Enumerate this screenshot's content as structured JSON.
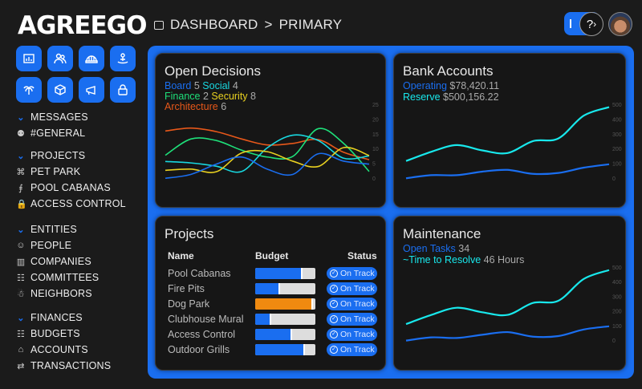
{
  "app": {
    "logo": "AGREEGO"
  },
  "header": {
    "breadcrumb": [
      "DASHBOARD",
      "PRIMARY"
    ],
    "separator": ">",
    "help_label": "?"
  },
  "colors": {
    "accent": "#1a6ef0",
    "board": "#1a6ef0",
    "social": "#18d8e0",
    "finance": "#1ee07a",
    "security": "#e8d020",
    "architecture": "#e8581a",
    "orange_bar": "#f08a10"
  },
  "quick_actions": [
    "reports-icon",
    "people-icon",
    "helmet-icon",
    "community-icon",
    "palm-tree-icon",
    "package-icon",
    "megaphone-icon",
    "lock-icon"
  ],
  "sidebar": [
    {
      "title": "MESSAGES",
      "items": [
        {
          "label": "#GENERAL",
          "icon": "group-icon"
        }
      ]
    },
    {
      "title": "PROJECTS",
      "items": [
        {
          "label": "PET PARK",
          "icon": "paw-icon"
        },
        {
          "label": "POOL CABANAS",
          "icon": "pool-icon"
        },
        {
          "label": "ACCESS CONTROL",
          "icon": "lock-icon"
        }
      ]
    },
    {
      "title": "ENTITIES",
      "items": [
        {
          "label": "PEOPLE",
          "icon": "people-icon"
        },
        {
          "label": "COMPANIES",
          "icon": "building-icon"
        },
        {
          "label": "COMMITTEES",
          "icon": "committee-icon"
        },
        {
          "label": "NEIGHBORS",
          "icon": "neighbors-icon"
        }
      ]
    },
    {
      "title": "FINANCES",
      "items": [
        {
          "label": "BUDGETS",
          "icon": "calculator-icon"
        },
        {
          "label": "ACCOUNTS",
          "icon": "bank-icon"
        },
        {
          "label": "TRANSACTIONS",
          "icon": "transfer-icon"
        }
      ]
    }
  ],
  "open_decisions": {
    "title": "Open Decisions",
    "legend": [
      {
        "name": "Board",
        "value": "5"
      },
      {
        "name": "Social",
        "value": "4"
      },
      {
        "name": "Finance",
        "value": "2"
      },
      {
        "name": "Security",
        "value": "8"
      },
      {
        "name": "Architecture",
        "value": "6"
      }
    ]
  },
  "bank_accounts": {
    "title": "Bank Accounts",
    "legend": [
      {
        "name": "Operating",
        "value": "$78,420.11"
      },
      {
        "name": "Reserve",
        "value": "$500,156.22"
      }
    ]
  },
  "projects": {
    "title": "Projects",
    "headers": [
      "Name",
      "Budget",
      "Status"
    ],
    "rows": [
      {
        "name": "Pool Cabanas",
        "budget": 0.78,
        "status": "On Track"
      },
      {
        "name": "Fire Pits",
        "budget": 0.41,
        "status": "On Track"
      },
      {
        "name": "Dog Park",
        "budget": 0.96,
        "status": "On Track",
        "over": true
      },
      {
        "name": "Clubhouse Mural",
        "budget": 0.27,
        "status": "On Track"
      },
      {
        "name": "Access Control",
        "budget": 0.61,
        "status": "On Track"
      },
      {
        "name": "Outdoor Grills",
        "budget": 0.83,
        "status": "On Track"
      }
    ]
  },
  "maintenance": {
    "title": "Maintenance",
    "legend": [
      {
        "name": "Open Tasks",
        "value": "34"
      },
      {
        "name": "~Time to Resolve",
        "value": "46 Hours"
      }
    ]
  },
  "chart_data": [
    {
      "type": "line",
      "ylim": [
        0,
        25
      ],
      "yticks": [
        0,
        5,
        10,
        15,
        20,
        25
      ],
      "grid": false,
      "series": [
        {
          "name": "Architecture",
          "color": "#e8581a",
          "values": [
            16.2,
            17.2,
            16,
            13.5,
            11.5,
            12,
            13.3,
            9,
            6.5
          ]
        },
        {
          "name": "Finance",
          "color": "#1ee07a",
          "values": [
            8,
            13.5,
            13,
            9.7,
            7.4,
            7.6,
            17,
            12,
            2.5
          ]
        },
        {
          "name": "Social",
          "color": "#18d8e0",
          "values": [
            5.9,
            5.4,
            4.3,
            2.5,
            10.5,
            14.8,
            13,
            7,
            7.8
          ]
        },
        {
          "name": "Security",
          "color": "#e8d020",
          "values": [
            2.9,
            3.3,
            2.4,
            8.8,
            9.2,
            6,
            4.2,
            10.6,
            7.9
          ]
        },
        {
          "name": "Board",
          "color": "#1a6ef0",
          "values": [
            0.2,
            1.5,
            5,
            7.4,
            3.3,
            1.5,
            8.5,
            6,
            5
          ]
        }
      ]
    },
    {
      "type": "line",
      "ylim": [
        0,
        500
      ],
      "yticks": [
        0,
        100,
        200,
        300,
        400,
        500
      ],
      "grid": false,
      "series": [
        {
          "name": "Reserve",
          "color": "#18e8ec",
          "values": [
            121,
            184,
            229,
            193,
            175,
            256,
            274,
            428,
            486
          ]
        },
        {
          "name": "Operating",
          "color": "#1a6ef0",
          "values": [
            4,
            25,
            25,
            49,
            61,
            34,
            40,
            76,
            99
          ]
        }
      ]
    },
    {
      "type": "line",
      "ylim": [
        0,
        500
      ],
      "yticks": [
        0,
        100,
        200,
        300,
        400,
        500
      ],
      "grid": false,
      "series": [
        {
          "name": "~Time to Resolve",
          "color": "#18e8ec",
          "values": [
            115,
            178,
            227,
            196,
            178,
            260,
            275,
            424,
            485
          ]
        },
        {
          "name": "Open Tasks",
          "color": "#1a6ef0",
          "values": [
            2,
            24,
            20,
            42,
            60,
            29,
            33,
            78,
            100
          ]
        }
      ]
    }
  ]
}
